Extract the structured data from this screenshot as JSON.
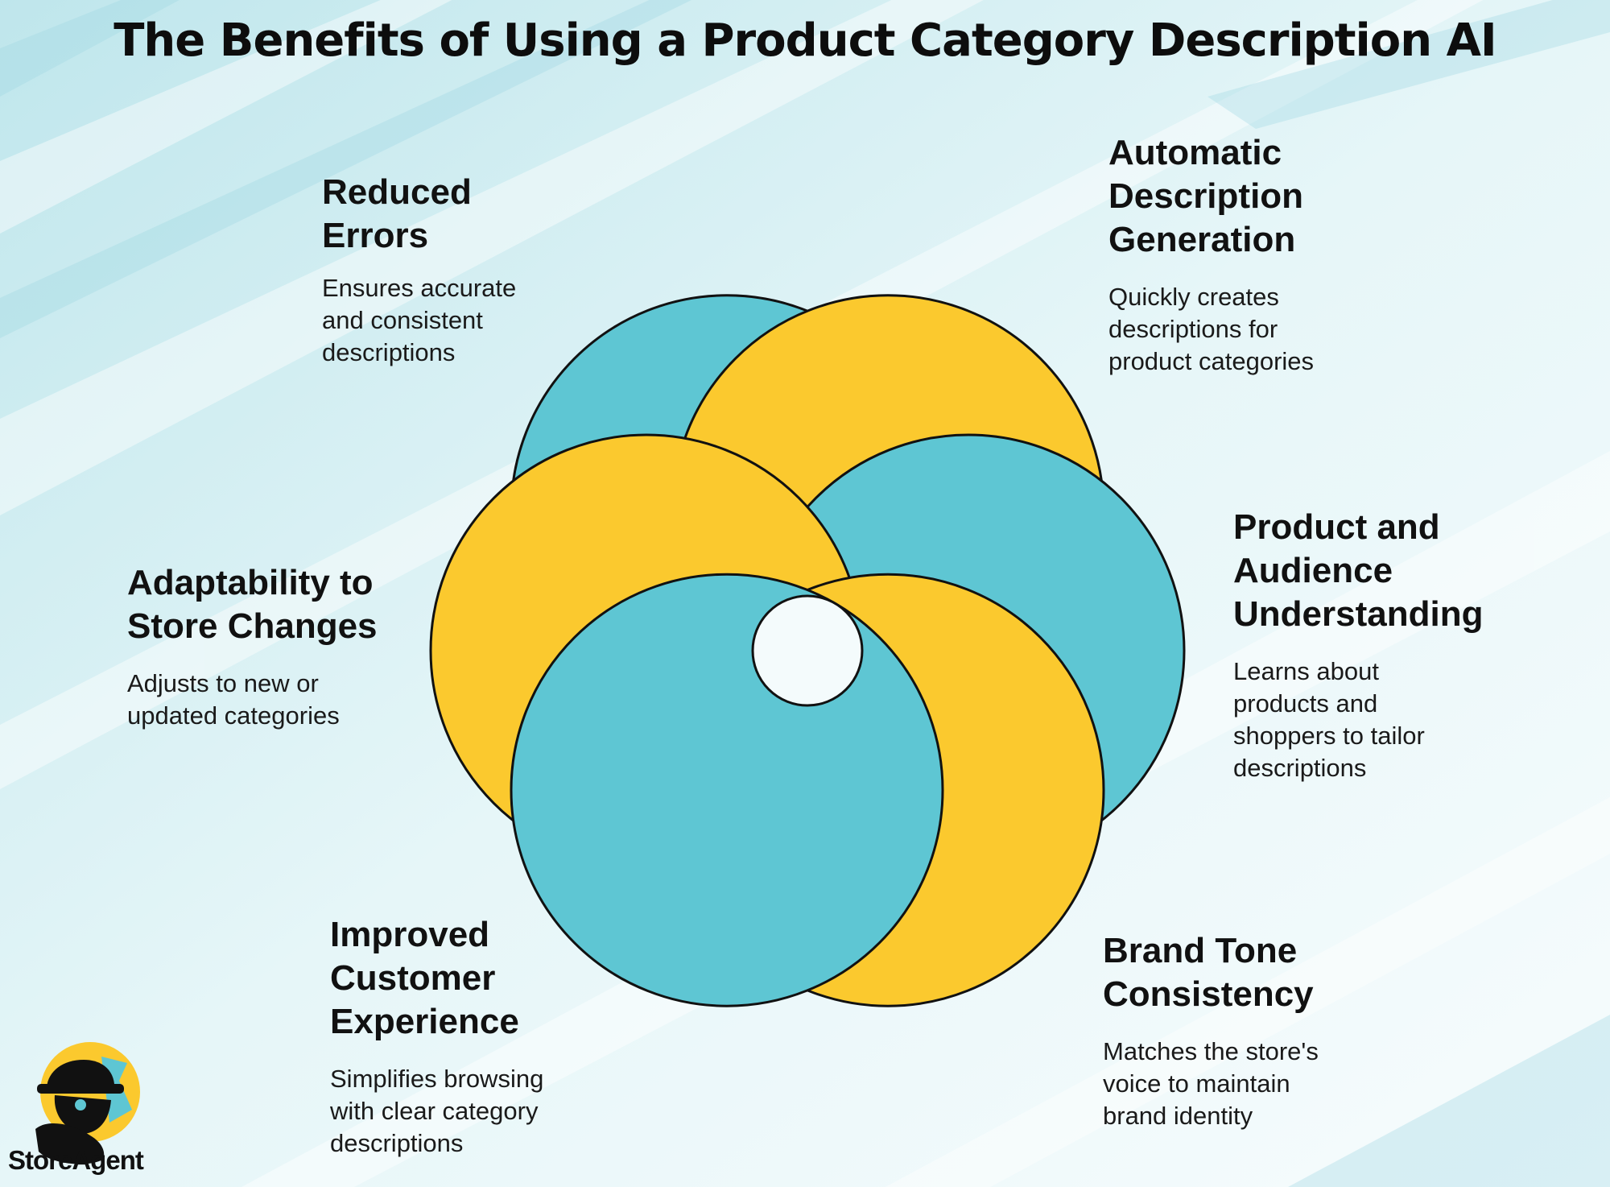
{
  "title": "The Benefits of Using a Product Category Description AI",
  "colors": {
    "teal": "#5EC6D3",
    "yellow": "#FBC92E",
    "stroke": "#111111",
    "background": "#D7F0F4"
  },
  "benefits": [
    {
      "title_lines": [
        "Reduced",
        "Errors"
      ],
      "desc_lines": [
        "Ensures accurate",
        "and consistent",
        "descriptions"
      ]
    },
    {
      "title_lines": [
        "Automatic",
        "Description",
        "Generation"
      ],
      "desc_lines": [
        "Quickly creates",
        "descriptions for",
        "product categories"
      ]
    },
    {
      "title_lines": [
        "Product and",
        "Audience",
        "Understanding"
      ],
      "desc_lines": [
        "Learns about",
        "products and",
        "shoppers to tailor",
        "descriptions"
      ]
    },
    {
      "title_lines": [
        "Adaptability to",
        "Store Changes"
      ],
      "desc_lines": [
        "Adjusts to new or",
        "updated categories"
      ]
    },
    {
      "title_lines": [
        "Brand Tone",
        "Consistency"
      ],
      "desc_lines": [
        "Matches the store's",
        "voice to maintain",
        "brand identity"
      ]
    },
    {
      "title_lines": [
        "Improved",
        "Customer",
        "Experience"
      ],
      "desc_lines": [
        "Simplifies browsing",
        "with clear category",
        "descriptions"
      ]
    }
  ],
  "logo": {
    "text": "StoreAgent",
    "icon": "spy-agent-icon"
  }
}
